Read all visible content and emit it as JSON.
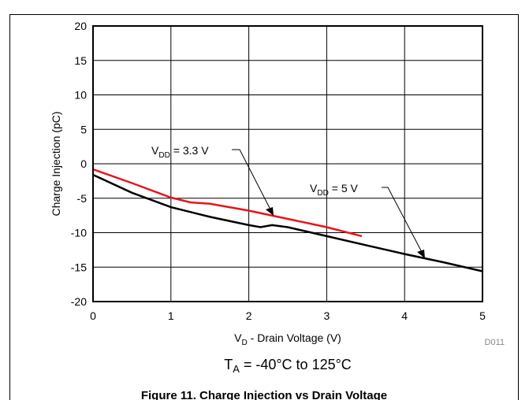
{
  "chart_data": {
    "type": "line",
    "caption": "Figure 11. Charge Injection vs Drain Voltage",
    "y_label": "Charge Injection (pC)",
    "x_label": {
      "text": "V",
      "sub": "D",
      "rest": " - Drain Voltage (V)"
    },
    "condition": {
      "text": "T",
      "sub": "A",
      "rest": " = -40°C to 125°C"
    },
    "figure_id": "D011",
    "annotations": [
      {
        "text": "V",
        "sub": "DD",
        "rest": " = 3.3 V"
      },
      {
        "text": "V",
        "sub": "DD",
        "rest": " = 5 V"
      }
    ],
    "series": [
      {
        "color": "#e8141b",
        "x": [
          0,
          0.5,
          1,
          1.25,
          1.5,
          2,
          2.5,
          3,
          3.45
        ],
        "values": [
          -0.8,
          -2.8,
          -4.9,
          -5.6,
          -5.8,
          -6.8,
          -8.0,
          -9.2,
          -10.5
        ]
      },
      {
        "color": "#000000",
        "x": [
          0,
          0.5,
          1,
          1.5,
          2,
          2.15,
          2.3,
          2.5,
          3,
          3.5,
          4,
          4.5,
          5
        ],
        "values": [
          -1.6,
          -4.2,
          -6.3,
          -7.7,
          -8.9,
          -9.2,
          -8.9,
          -9.2,
          -10.5,
          -11.8,
          -13.1,
          -14.3,
          -15.6
        ]
      }
    ],
    "xlim": [
      0,
      5
    ],
    "xticks": [
      0,
      1,
      2,
      3,
      4,
      5
    ],
    "ylim": [
      -20,
      20
    ],
    "yticks": [
      -20,
      -15,
      -10,
      -5,
      0,
      5,
      10,
      15,
      20
    ],
    "grid": true
  }
}
